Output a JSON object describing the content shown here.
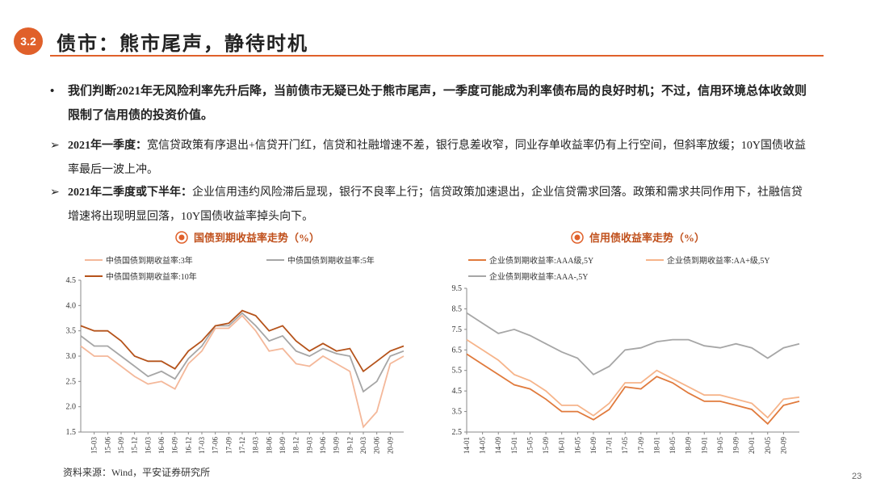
{
  "header": {
    "section": "3.2",
    "title": "债市：熊市尾声，静待时机"
  },
  "bullets": [
    {
      "marker": "•",
      "text": "我们判断2021年无风险利率先升后降，当前债市无疑已处于熊市尾声，一季度可能成为利率债布局的良好时机；不过，信用环境总体收敛则限制了信用债的投资价值。"
    },
    {
      "marker": "➢",
      "label": "2021年一季度：",
      "text": "宽信贷政策有序退出+信贷开门红，信贷和社融增速不差，银行息差收窄，同业存单收益率仍有上行空间，但斜率放缓；10Y国债收益率最后一波上冲。"
    },
    {
      "marker": "➢",
      "label": "2021年二季度或下半年：",
      "text": "企业信用违约风险滞后显现，银行不良率上行；信贷政策加速退出，企业信贷需求回落。政策和需求共同作用下，社融信贷增速将出现明显回落，10Y国债收益率掉头向下。"
    }
  ],
  "chart_data": [
    {
      "type": "line",
      "title": "国债到期收益率走势（%）",
      "categories": [
        null,
        "15-03",
        "15-06",
        "15-09",
        "15-12",
        "16-03",
        "16-06",
        "16-09",
        "16-12",
        "17-03",
        "17-06",
        "17-09",
        "17-12",
        "18-03",
        "18-06",
        "18-09",
        "18-12",
        "19-03",
        "19-06",
        "19-09",
        "19-12",
        "20-03",
        "20-06",
        "20-09",
        null
      ],
      "series": [
        {
          "name": "中债国债到期收益率:3年",
          "color": "#f4b89a",
          "values": [
            3.2,
            3.0,
            3.0,
            2.8,
            2.6,
            2.45,
            2.5,
            2.35,
            2.85,
            3.1,
            3.55,
            3.55,
            3.8,
            3.5,
            3.1,
            3.15,
            2.85,
            2.8,
            3.0,
            2.85,
            2.7,
            1.6,
            1.9,
            2.85,
            3.0
          ]
        },
        {
          "name": "中债国债到期收益率:5年",
          "color": "#a6a6a6",
          "values": [
            3.4,
            3.2,
            3.2,
            3.0,
            2.8,
            2.6,
            2.7,
            2.55,
            2.95,
            3.2,
            3.6,
            3.6,
            3.85,
            3.6,
            3.3,
            3.4,
            3.1,
            3.0,
            3.15,
            3.05,
            3.0,
            2.3,
            2.5,
            3.0,
            3.1
          ]
        },
        {
          "name": "中债国债到期收益率:10年",
          "color": "#b5531b",
          "values": [
            3.6,
            3.5,
            3.5,
            3.3,
            3.0,
            2.9,
            2.9,
            2.75,
            3.1,
            3.3,
            3.6,
            3.65,
            3.9,
            3.8,
            3.5,
            3.6,
            3.3,
            3.1,
            3.25,
            3.1,
            3.15,
            2.7,
            2.9,
            3.1,
            3.2
          ]
        }
      ],
      "ylim": [
        1.5,
        4.5
      ],
      "yticks": [
        1.5,
        {
          "value": 2,
          "label": "2.0"
        },
        2.5,
        {
          "value": 3,
          "label": "3.0"
        },
        3.5,
        {
          "value": 4,
          "label": "4.0"
        },
        4.5
      ]
    },
    {
      "type": "line",
      "title": "信用债收益率走势（%）",
      "categories": [
        "14-01",
        "14-05",
        "14-09",
        "15-01",
        "15-05",
        "15-09",
        "16-01",
        "16-05",
        "16-09",
        "17-01",
        "17-05",
        "17-09",
        "18-01",
        "18-05",
        "18-09",
        "19-01",
        "19-05",
        "19-09",
        "20-01",
        "20-05",
        "20-09",
        null
      ],
      "series": [
        {
          "name": "企业债到期收益率:AAA级,5Y",
          "color": "#e07a3c",
          "values": [
            6.3,
            5.8,
            5.3,
            4.8,
            4.6,
            4.1,
            3.5,
            3.5,
            3.1,
            3.6,
            4.7,
            4.6,
            5.2,
            4.9,
            4.4,
            4.0,
            4.0,
            3.8,
            3.6,
            2.9,
            3.8,
            4.0
          ]
        },
        {
          "name": "企业债到期收益率:AA+级,5Y",
          "color": "#f6b48a",
          "values": [
            7.0,
            6.5,
            6.0,
            5.3,
            5.0,
            4.5,
            3.8,
            3.8,
            3.3,
            3.9,
            4.9,
            4.9,
            5.5,
            5.1,
            4.7,
            4.3,
            4.3,
            4.1,
            3.9,
            3.2,
            4.1,
            4.2
          ]
        },
        {
          "name": "企业债到期收益率:AAA-,5Y",
          "color": "#a6a6a6",
          "values": [
            8.3,
            7.8,
            7.3,
            7.5,
            7.2,
            6.8,
            6.4,
            6.1,
            5.3,
            5.7,
            6.5,
            6.6,
            6.9,
            7.0,
            7.0,
            6.7,
            6.6,
            6.8,
            6.6,
            6.1,
            6.6,
            6.8
          ]
        }
      ],
      "ylim": [
        2.5,
        9.5
      ],
      "yticks": [
        2.5,
        3.5,
        4.5,
        5.5,
        6.5,
        7.5,
        8.5,
        9.5
      ]
    }
  ],
  "source": "资料来源：Wind，平安证券研究所",
  "page_number": "23"
}
